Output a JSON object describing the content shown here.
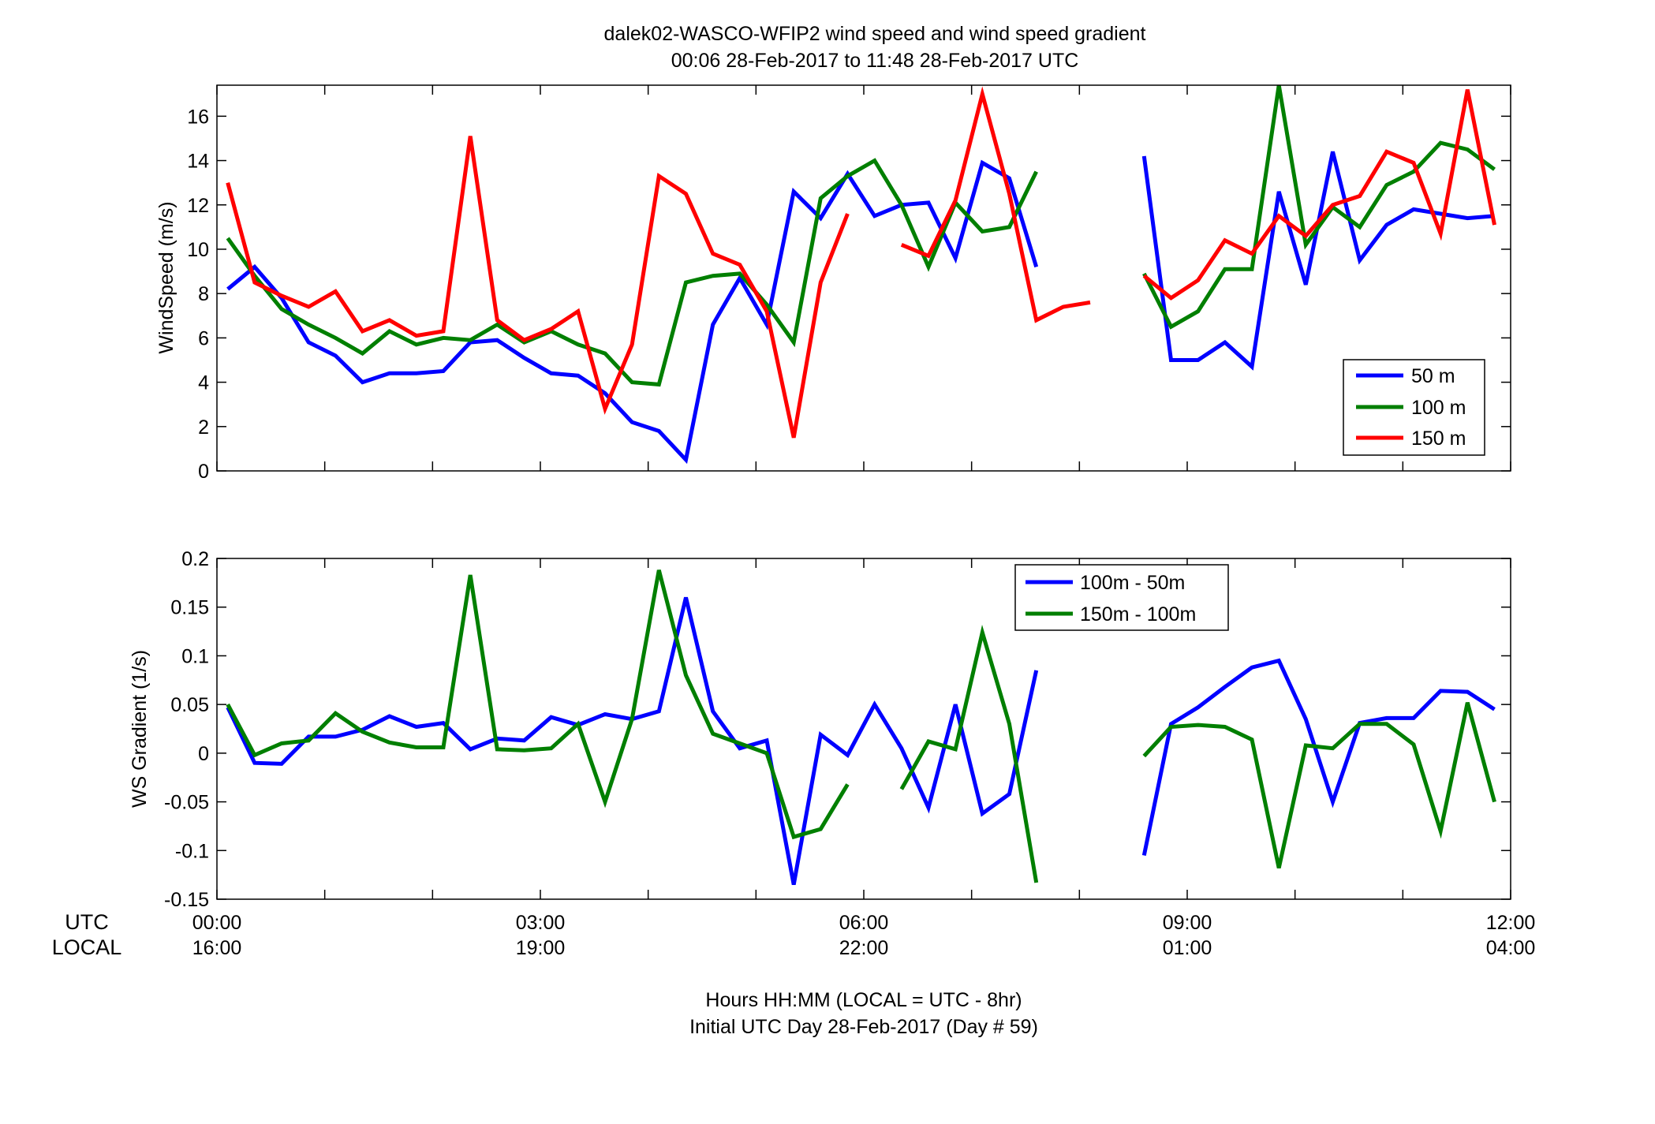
{
  "figure": {
    "title_line1": "dalek02-WASCO-WFIP2  wind speed and wind speed gradient",
    "title_line2": "00:06 28-Feb-2017 to 11:48 28-Feb-2017  UTC",
    "xlabel_line1": "Hours HH:MM  (LOCAL = UTC - 8hr)",
    "xlabel_line2": "Initial UTC Day 28-Feb-2017 (Day # 59)",
    "utc_row_label": "UTC",
    "local_row_label": "LOCAL",
    "utc_ticks": [
      "00:00",
      "03:00",
      "06:00",
      "09:00",
      "12:00"
    ],
    "local_ticks": [
      "16:00",
      "19:00",
      "22:00",
      "01:00",
      "04:00"
    ]
  },
  "chart_data": [
    {
      "type": "line",
      "ylabel": "WindSpeed (m/s)",
      "xlim": [
        0,
        12
      ],
      "ylim": [
        0,
        17.4
      ],
      "yticks": [
        0,
        2,
        4,
        6,
        8,
        10,
        12,
        14,
        16
      ],
      "legend_position": "bottom-right",
      "x": [
        0.1,
        0.35,
        0.6,
        0.85,
        1.1,
        1.35,
        1.6,
        1.85,
        2.1,
        2.35,
        2.6,
        2.85,
        3.1,
        3.35,
        3.6,
        3.85,
        4.1,
        4.35,
        4.6,
        4.85,
        5.1,
        5.35,
        5.6,
        5.85,
        6.1,
        6.35,
        6.6,
        6.85,
        7.1,
        7.35,
        7.6,
        7.85,
        8.1,
        8.35,
        8.6,
        8.85,
        9.1,
        9.35,
        9.6,
        9.85,
        10.1,
        10.35,
        10.6,
        10.85,
        11.1,
        11.35,
        11.6,
        11.85
      ],
      "series": [
        {
          "name": "50 m",
          "color": "#0000ff",
          "values": [
            8.2,
            9.2,
            7.8,
            5.8,
            5.2,
            4.0,
            4.4,
            4.4,
            4.5,
            5.8,
            5.9,
            5.1,
            4.4,
            4.3,
            3.5,
            2.2,
            1.8,
            0.5,
            6.6,
            8.7,
            6.6,
            12.6,
            11.4,
            13.4,
            11.5,
            12.0,
            12.1,
            9.6,
            13.9,
            13.2,
            9.2,
            null,
            null,
            null,
            14.2,
            5.0,
            5.0,
            5.8,
            4.7,
            12.6,
            8.4,
            14.4,
            9.5,
            11.1,
            11.8,
            11.6,
            11.4,
            11.5
          ]
        },
        {
          "name": "100 m",
          "color": "#007f00",
          "values": [
            10.5,
            8.8,
            7.3,
            6.6,
            6.0,
            5.3,
            6.3,
            5.7,
            6.0,
            5.9,
            6.6,
            5.8,
            6.3,
            5.7,
            5.3,
            4.0,
            3.9,
            8.5,
            8.8,
            8.9,
            7.5,
            5.8,
            12.3,
            13.3,
            14.0,
            12.0,
            9.2,
            12.1,
            10.8,
            11.0,
            13.5,
            null,
            null,
            null,
            8.9,
            6.5,
            7.2,
            9.1,
            9.1,
            17.4,
            10.2,
            11.9,
            11.0,
            12.9,
            13.5,
            14.8,
            14.5,
            13.6
          ]
        },
        {
          "name": "150 m",
          "color": "#ff0000",
          "values": [
            13.0,
            8.5,
            7.9,
            7.4,
            8.1,
            6.3,
            6.8,
            6.1,
            6.3,
            15.1,
            6.8,
            5.9,
            6.4,
            7.2,
            2.8,
            5.7,
            13.3,
            12.5,
            9.8,
            9.3,
            7.2,
            1.5,
            8.5,
            11.6,
            null,
            10.2,
            9.7,
            12.2,
            17.0,
            12.5,
            6.8,
            7.4,
            7.6,
            null,
            8.8,
            7.8,
            8.6,
            10.4,
            9.8,
            11.5,
            10.6,
            12.0,
            12.4,
            14.4,
            13.9,
            10.7,
            17.2,
            11.1
          ]
        }
      ]
    },
    {
      "type": "line",
      "ylabel": "WS Gradient (1/s)",
      "xlim": [
        0,
        12
      ],
      "ylim": [
        -0.15,
        0.2
      ],
      "yticks": [
        -0.15,
        -0.1,
        -0.05,
        0,
        0.05,
        0.1,
        0.15,
        0.2
      ],
      "ytick_labels": [
        "-0.15",
        "-0.1",
        "-0.05",
        "0",
        "0.05",
        "0.1",
        "0.15",
        "0.2"
      ],
      "legend_position": "top-center",
      "x": [
        0.1,
        0.35,
        0.6,
        0.85,
        1.1,
        1.35,
        1.6,
        1.85,
        2.1,
        2.35,
        2.6,
        2.85,
        3.1,
        3.35,
        3.6,
        3.85,
        4.1,
        4.35,
        4.6,
        4.85,
        5.1,
        5.35,
        5.6,
        5.85,
        6.1,
        6.35,
        6.6,
        6.85,
        7.1,
        7.35,
        7.6,
        7.85,
        8.1,
        8.35,
        8.6,
        8.85,
        9.1,
        9.35,
        9.6,
        9.85,
        10.1,
        10.35,
        10.6,
        10.85,
        11.1,
        11.35,
        11.6,
        11.85
      ],
      "series": [
        {
          "name": "100m - 50m",
          "color": "#0000ff",
          "values": [
            0.047,
            -0.01,
            -0.011,
            0.017,
            0.017,
            0.024,
            0.038,
            0.027,
            0.031,
            0.004,
            0.015,
            0.013,
            0.037,
            0.029,
            0.04,
            0.035,
            0.043,
            0.16,
            0.043,
            0.005,
            0.013,
            -0.135,
            0.019,
            -0.002,
            0.05,
            0.005,
            -0.056,
            0.05,
            -0.062,
            -0.042,
            0.085,
            null,
            null,
            null,
            -0.105,
            0.03,
            0.047,
            0.068,
            0.088,
            0.095,
            0.035,
            -0.05,
            0.031,
            0.036,
            0.036,
            0.064,
            0.063,
            0.045
          ]
        },
        {
          "name": "150m - 100m",
          "color": "#007f00",
          "values": [
            0.05,
            -0.002,
            0.01,
            0.013,
            0.041,
            0.022,
            0.011,
            0.006,
            0.006,
            0.183,
            0.004,
            0.003,
            0.005,
            0.03,
            -0.05,
            0.035,
            0.188,
            0.08,
            0.02,
            0.01,
            0.0,
            -0.086,
            -0.078,
            -0.032,
            null,
            -0.037,
            0.012,
            0.004,
            0.124,
            0.03,
            -0.133,
            null,
            null,
            null,
            -0.003,
            0.027,
            0.029,
            0.027,
            0.014,
            -0.118,
            0.008,
            0.005,
            0.03,
            0.03,
            0.009,
            -0.08,
            0.052,
            -0.05
          ]
        }
      ]
    }
  ]
}
